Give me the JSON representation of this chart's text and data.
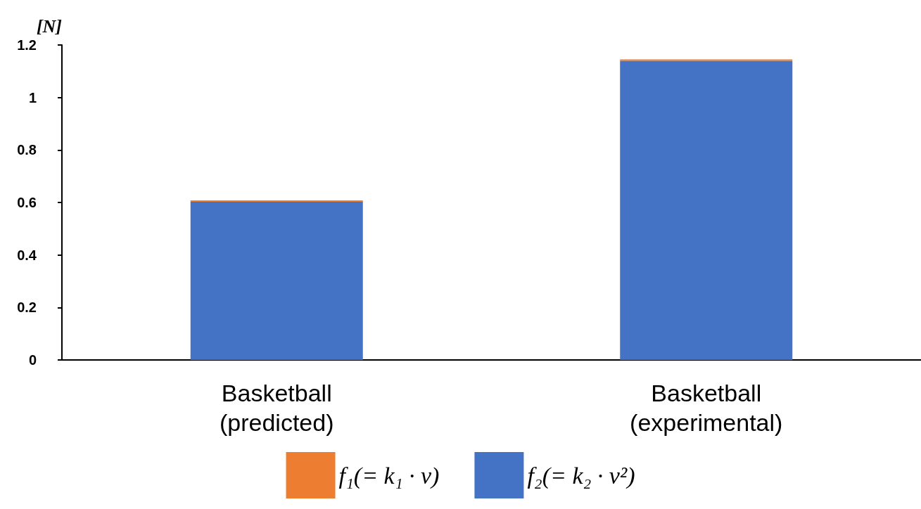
{
  "chart_data": {
    "type": "bar",
    "ylabel": "[N]",
    "categories": [
      "Basketball\n(predicted)",
      "Basketball\n(experimental)"
    ],
    "stacked": true,
    "series": [
      {
        "name": "f₂(= k₂ · v²)",
        "color": "#4472c4",
        "values": [
          0.603,
          1.14
        ]
      },
      {
        "name": "f₁(= k₁ · v)",
        "color": "#ed7d31",
        "values": [
          0.005,
          0.005
        ]
      }
    ],
    "ylim": [
      0,
      1.2
    ],
    "yticks": [
      0,
      0.2,
      0.4,
      0.6,
      0.8,
      1,
      1.2
    ],
    "grid": false,
    "legend": "bottom"
  }
}
